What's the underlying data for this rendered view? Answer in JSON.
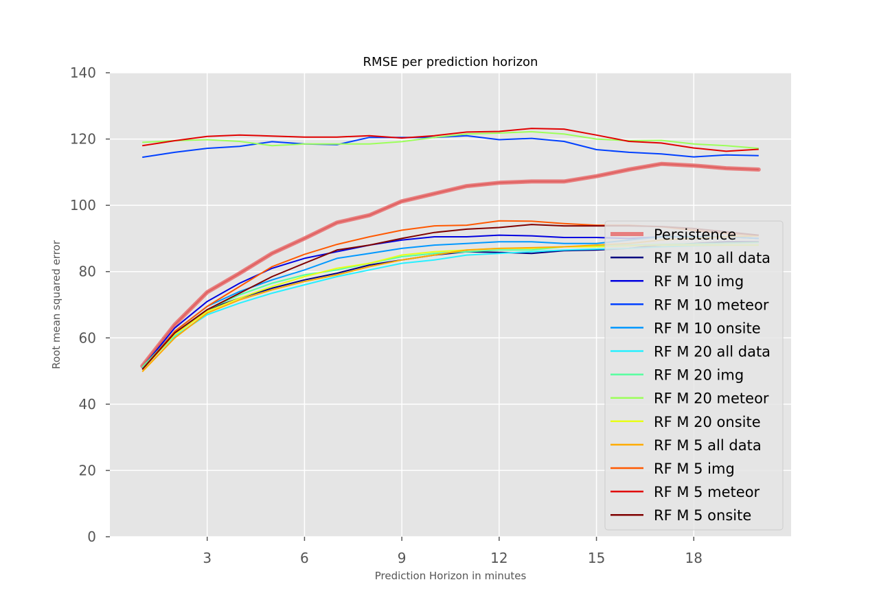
{
  "chart_data": {
    "type": "line",
    "title": "RMSE per prediction horizon",
    "xlabel": "Prediction Horizon in minutes",
    "ylabel": "Root mean squared error",
    "xlim": [
      0,
      21
    ],
    "ylim": [
      0,
      140
    ],
    "xticks": [
      3,
      6,
      9,
      12,
      15,
      18
    ],
    "yticks": [
      0,
      20,
      40,
      60,
      80,
      100,
      120,
      140
    ],
    "grid": true,
    "legend_position": "lower-right",
    "x": [
      1,
      2,
      3,
      4,
      5,
      6,
      7,
      8,
      9,
      10,
      11,
      12,
      13,
      14,
      15,
      16,
      17,
      18,
      19,
      20
    ],
    "series": [
      {
        "name": "Persistence",
        "color": "#e86c6c",
        "width": 6,
        "values": [
          51.5,
          64,
          73.8,
          79.5,
          85.5,
          90,
          94.8,
          97,
          101.2,
          103.5,
          105.8,
          106.8,
          107.2,
          107.2,
          108.8,
          110.8,
          112.5,
          112,
          111.2,
          110.8
        ]
      },
      {
        "name": "RF M 10 all data",
        "color": "#00007f",
        "width": 2,
        "values": [
          50.5,
          61,
          68.5,
          72,
          75,
          77.5,
          79.5,
          82,
          83.5,
          85,
          86,
          85.8,
          85.5,
          86.3,
          86.5,
          87,
          88,
          88.5,
          89,
          89
        ]
      },
      {
        "name": "RF M 10 img",
        "color": "#0000e0",
        "width": 2,
        "values": [
          51,
          63,
          71,
          76.5,
          81,
          84,
          86,
          88,
          89.5,
          90.5,
          90.5,
          91,
          90.8,
          90.3,
          90.3,
          90,
          90.5,
          90.5,
          90.5,
          90
        ]
      },
      {
        "name": "RF M 10 meteor",
        "color": "#0040ff",
        "width": 2,
        "values": [
          114.5,
          116,
          117.2,
          117.8,
          119.2,
          118.5,
          118.3,
          120.5,
          120.5,
          120.5,
          121,
          119.8,
          120.2,
          119.3,
          116.8,
          116,
          115.5,
          114.6,
          115.2,
          115
        ]
      },
      {
        "name": "RF M 10 onsite",
        "color": "#0098ff",
        "width": 2,
        "values": [
          50.8,
          62,
          69.5,
          74,
          77.5,
          80.5,
          84,
          85.5,
          87,
          88,
          88.5,
          89,
          89,
          88.5,
          88.5,
          89.5,
          90.5,
          90.5,
          90.5,
          90
        ]
      },
      {
        "name": "RF M 20 all data",
        "color": "#26f0ff",
        "width": 2,
        "values": [
          51,
          60.5,
          67,
          70.5,
          73.5,
          76,
          78.5,
          80.5,
          82.5,
          83.5,
          85,
          85.5,
          86,
          86.5,
          86.8,
          87,
          87.5,
          87.8,
          88,
          88
        ]
      },
      {
        "name": "RF M 20 img",
        "color": "#55ff9f",
        "width": 2,
        "values": [
          51.2,
          61.5,
          68.5,
          73,
          76.5,
          79,
          80.5,
          82.5,
          84.5,
          85.5,
          86,
          86.5,
          86.5,
          87.5,
          87.8,
          88,
          88.2,
          88.4,
          88.6,
          88.8
        ]
      },
      {
        "name": "RF M 20 meteor",
        "color": "#9cff5a",
        "width": 2,
        "values": [
          119,
          119.5,
          119.8,
          119.3,
          118,
          118.5,
          118.5,
          118.5,
          119.2,
          120.5,
          121.5,
          121.8,
          122.2,
          121.5,
          120,
          119.5,
          119.6,
          118.5,
          118,
          117.2
        ]
      },
      {
        "name": "RF M 20 onsite",
        "color": "#e8ff17",
        "width": 2,
        "values": [
          50.5,
          61,
          68,
          72,
          75.5,
          78.5,
          81,
          82.5,
          85,
          86,
          86.5,
          87,
          87,
          87.5,
          87.5,
          87.8,
          88,
          88,
          88,
          88
        ]
      },
      {
        "name": "RF M 5 all data",
        "color": "#ffab00",
        "width": 2,
        "values": [
          49.8,
          60,
          67.5,
          71.5,
          74.5,
          77,
          79,
          81.5,
          83.5,
          85,
          86.5,
          87,
          87.2,
          87.5,
          88,
          88.5,
          89.5,
          90,
          90.5,
          90.8
        ]
      },
      {
        "name": "RF M 5 img",
        "color": "#ff5800",
        "width": 2,
        "values": [
          50.5,
          62,
          69.5,
          75.5,
          81.5,
          85.2,
          88.2,
          90.5,
          92.5,
          93.8,
          94,
          95.3,
          95.2,
          94.5,
          94,
          94,
          93.5,
          92.5,
          91.5,
          91
        ]
      },
      {
        "name": "RF M 5 meteor",
        "color": "#e00000",
        "width": 2,
        "values": [
          118,
          119.5,
          120.8,
          121.2,
          120.9,
          120.6,
          120.6,
          121,
          120.3,
          121,
          122.1,
          122.3,
          123.2,
          123,
          121.2,
          119.3,
          118.8,
          117.3,
          116.3,
          116.9
        ]
      },
      {
        "name": "RF M 5 onsite",
        "color": "#7f0000",
        "width": 2,
        "values": [
          50.5,
          61.5,
          68.5,
          73.5,
          78.5,
          82.5,
          86.5,
          88,
          90,
          91.8,
          92.8,
          93.3,
          94.2,
          93.8,
          93.8,
          93.8,
          93.6,
          93,
          92,
          91
        ]
      }
    ]
  }
}
